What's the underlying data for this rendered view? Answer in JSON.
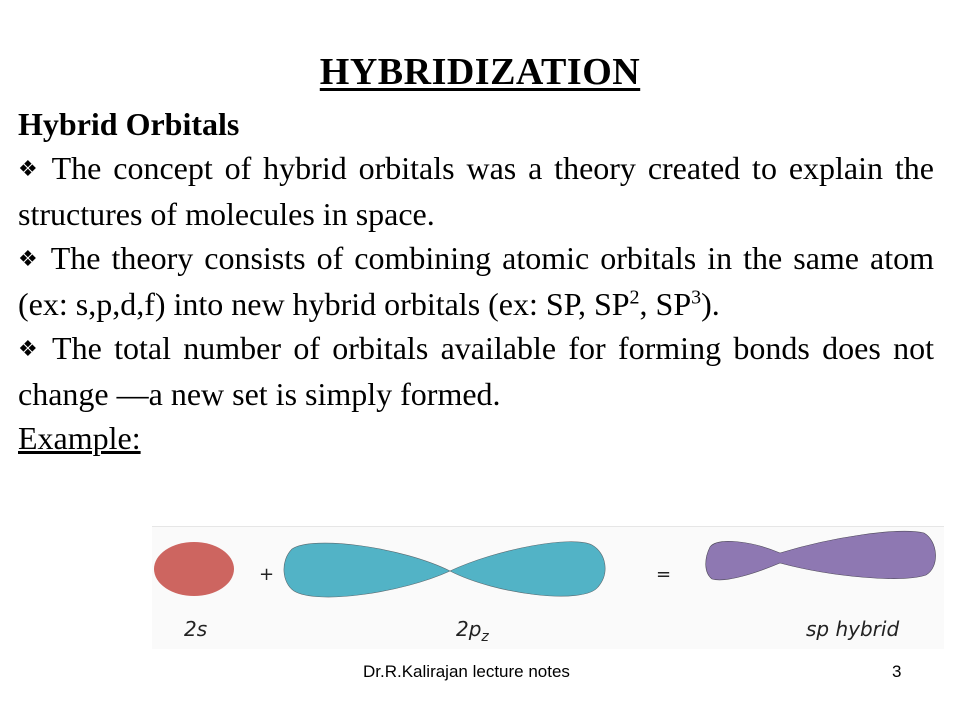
{
  "slide": {
    "title": "HYBRIDIZATION",
    "subheading": "Hybrid Orbitals",
    "bullet_mark": "❖",
    "bullets": {
      "b1": "The concept of hybrid orbitals was a theory created to explain the structures of molecules in space.",
      "b2_part1": "The theory consists of combining atomic orbitals in the same atom (ex: s,p,d,f) into new hybrid orbitals (ex: SP, SP",
      "b2_sup1": "2",
      "b2_part2": ", SP",
      "b2_sup2": "3",
      "b2_part3": ").",
      "b3": "The total number of orbitals available for forming bonds does not change —a new set is simply formed."
    },
    "example_label": "Example:"
  },
  "diagram": {
    "label_2s": "2s",
    "label_2pz": "2pz",
    "label_sp": "sp hybrid",
    "plus": "+",
    "equals": "=",
    "colors": {
      "s_orbital": "#cd6560",
      "p_orbital": "#52b3c6",
      "sp_orbital": "#8e78b2"
    }
  },
  "footer": {
    "notes": "Dr.R.Kalirajan lecture notes",
    "page_number": "3"
  }
}
